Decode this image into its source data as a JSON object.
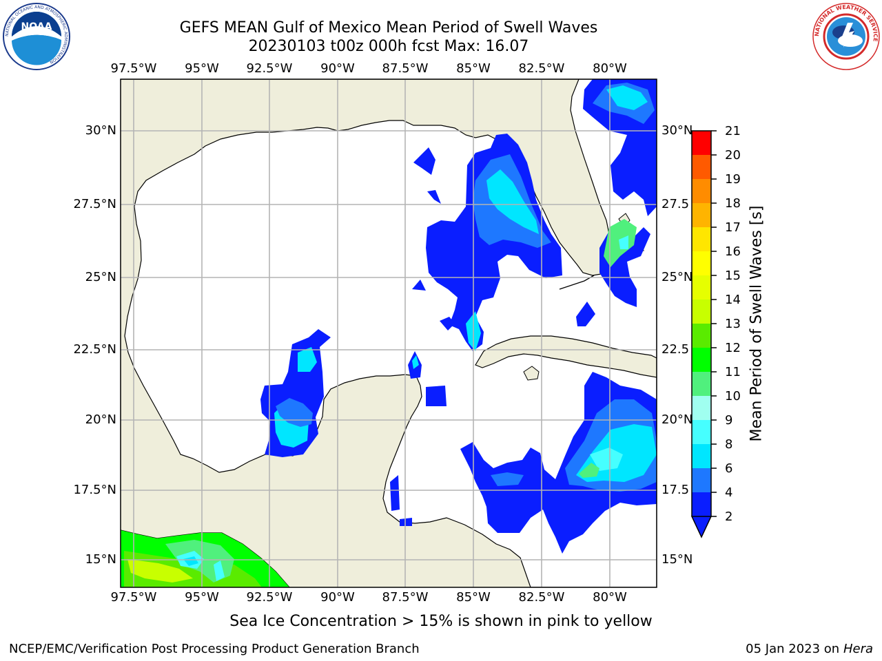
{
  "header": {
    "title_line1": "GEFS MEAN Gulf of Mexico Mean Period of Swell Waves",
    "title_line2": "20230103 t00z 000h fcst   Max: 16.07"
  },
  "logos": {
    "left": {
      "name": "NOAA",
      "ring_text": "NATIONAL OCEANIC AND ATMOSPHERIC ADMINISTRATION",
      "bottom_text": "U.S. DEPARTMENT OF COMMERCE"
    },
    "right": {
      "ring_text": "NATIONAL WEATHER SERVICE"
    }
  },
  "map": {
    "lon_labels": [
      "97.5°W",
      "95°W",
      "92.5°W",
      "90°W",
      "87.5°W",
      "85°W",
      "82.5°W",
      "80°W"
    ],
    "lat_labels_left": [
      "30°N",
      "27.5°N",
      "25°N",
      "22.5°N",
      "20°N",
      "17.5°N",
      "15°N"
    ],
    "lat_labels_right": [
      "30°N",
      "27.5",
      "25°N",
      "22.5",
      "20°N",
      "17.5",
      "15°N"
    ],
    "colors": {
      "land": "#efeedb",
      "ocean": "#ffffff",
      "grid": "#b4b4b4",
      "coast": "#000000"
    }
  },
  "colorbar": {
    "label": "Mean Period of Swell Waves [s]",
    "ticks": [
      "2",
      "4",
      "6",
      "8",
      "9",
      "10",
      "11",
      "12",
      "13",
      "14",
      "15",
      "16",
      "17",
      "18",
      "19",
      "20",
      "21"
    ],
    "colors": [
      "#0a1eff",
      "#1e78ff",
      "#00e6ff",
      "#46ffff",
      "#a0fff0",
      "#50f07d",
      "#00ff00",
      "#5aeb00",
      "#c8ff00",
      "#e6ff00",
      "#ffff00",
      "#ffe600",
      "#ffb400",
      "#ff8c00",
      "#ff5a00",
      "#ff3200",
      "#ff0000"
    ]
  },
  "footer": {
    "note": "Sea Ice Concentration > 15% is shown in pink to yellow",
    "credit": "NCEP/EMC/Verification Post Processing Product Generation Branch",
    "date_prefix": "05 Jan 2023 on ",
    "date_machine": "Hera"
  }
}
